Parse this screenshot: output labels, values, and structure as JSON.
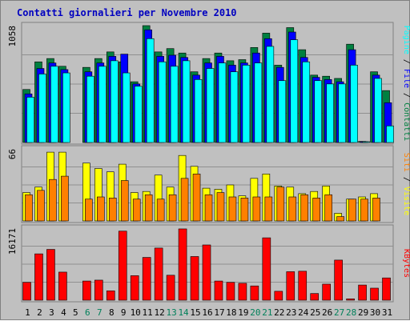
{
  "chart_data": {
    "type": "bar",
    "title": "Contatti giornalieri per Novembre 2010",
    "days": [
      "1",
      "2",
      "3",
      "4",
      "5",
      "6",
      "7",
      "8",
      "9",
      "10",
      "11",
      "12",
      "13",
      "14",
      "15",
      "16",
      "17",
      "18",
      "19",
      "20",
      "21",
      "22",
      "23",
      "24",
      "25",
      "26",
      "27",
      "28",
      "29",
      "30",
      "31"
    ],
    "weekend_days": [
      "6",
      "7",
      "13",
      "14",
      "20",
      "21",
      "27",
      "28"
    ],
    "panels": [
      {
        "id": "visits",
        "max_label": "1058",
        "ylim": [
          0,
          1058
        ],
        "right_labels": [
          "Pagine",
          "File",
          "Contatti"
        ],
        "series": [
          {
            "name": "Contatti",
            "color": "#008040",
            "values": [
              480,
              730,
              760,
              690,
              0,
              680,
              760,
              820,
              730,
              550,
              1058,
              820,
              850,
              810,
              640,
              760,
              810,
              740,
              750,
              860,
              990,
              700,
              1040,
              840,
              610,
              600,
              580,
              890,
              10,
              640,
              470
            ]
          },
          {
            "name": "File",
            "color": "#0000ff",
            "values": [
              440,
              670,
              720,
              660,
              0,
              640,
              720,
              780,
              800,
              530,
              1020,
              780,
              790,
              770,
              610,
              720,
              780,
              700,
              720,
              810,
              940,
              680,
              1000,
              770,
              590,
              570,
              550,
              840,
              8,
              610,
              360
            ]
          },
          {
            "name": "Pagine",
            "color": "#00ffff",
            "values": [
              410,
              620,
              690,
              630,
              0,
              600,
              690,
              740,
              630,
              510,
              940,
              730,
              690,
              740,
              570,
              670,
              720,
              640,
              700,
              720,
              870,
              560,
              930,
              730,
              560,
              530,
              530,
              700,
              5,
              580,
              150
            ]
          }
        ]
      },
      {
        "id": "sites",
        "max_label": "66",
        "ylim": [
          0,
          66
        ],
        "right_labels": [
          "Siti",
          "Visite"
        ],
        "series": [
          {
            "name": "Visite",
            "color": "#ffff00",
            "values": [
              26,
              31,
              63,
              63,
              0,
              53,
              48,
              45,
              52,
              26,
              27,
              42,
              31,
              60,
              50,
              30,
              29,
              33,
              23,
              39,
              43,
              32,
              31,
              25,
              27,
              32,
              7,
              20,
              22,
              25,
              0
            ]
          },
          {
            "name": "Siti",
            "color": "#ff8000",
            "values": [
              24,
              28,
              38,
              41,
              0,
              20,
              22,
              21,
              37,
              20,
              24,
              20,
              24,
              39,
              43,
              24,
              26,
              22,
              21,
              22,
              22,
              31,
              22,
              24,
              21,
              24,
              4,
              20,
              20,
              21,
              0
            ]
          }
        ]
      },
      {
        "id": "kbytes",
        "max_label": "16171",
        "ylim": [
          0,
          16171
        ],
        "right_labels": [
          "KBytes"
        ],
        "series": [
          {
            "name": "KBytes",
            "color": "#ff0000",
            "values": [
              4000,
              10400,
              11400,
              6300,
              0,
              4300,
              4500,
              2100,
              15500,
              5500,
              9600,
              11700,
              5600,
              16000,
              9800,
              12400,
              4300,
              4000,
              3800,
              3200,
              14000,
              2000,
              6400,
              6500,
              1500,
              3600,
              9000,
              300,
              3400,
              2700,
              5000
            ]
          }
        ]
      }
    ]
  }
}
